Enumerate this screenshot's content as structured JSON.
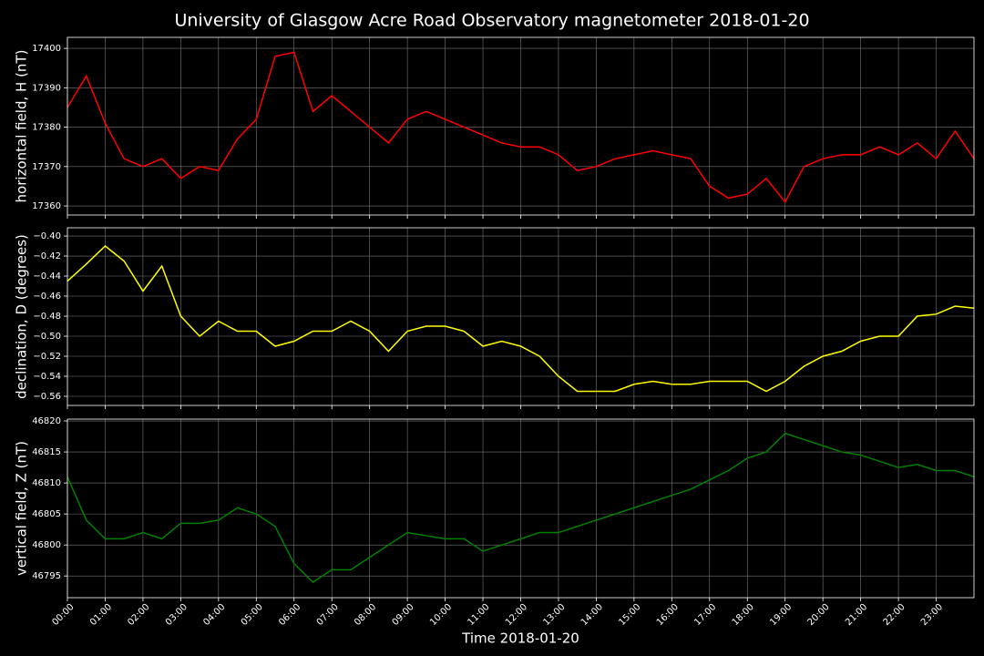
{
  "title": "University of Glasgow Acre Road Observatory magnetometer 2018-01-20",
  "chart_data": [
    {
      "type": "line",
      "ylabel": "horizontal field, H (nT)",
      "color": "#ff0000",
      "grid": true,
      "x": [
        0,
        0.5,
        1,
        1.5,
        2,
        2.5,
        3,
        3.5,
        4,
        4.5,
        5,
        5.5,
        6,
        6.5,
        7,
        7.5,
        8,
        8.5,
        9,
        9.5,
        10,
        10.5,
        11,
        11.5,
        12,
        12.5,
        13,
        13.5,
        14,
        14.5,
        15,
        15.5,
        16,
        16.5,
        17,
        17.5,
        18,
        18.5,
        19,
        19.5,
        20,
        20.5,
        21,
        21.5,
        22,
        22.5,
        23,
        23.5,
        24
      ],
      "values": [
        17385,
        17393,
        17381,
        17372,
        17370,
        17372,
        17367,
        17370,
        17369,
        17377,
        17382,
        17398,
        17399,
        17384,
        17388,
        17384,
        17380,
        17376,
        17382,
        17384,
        17382,
        17380,
        17378,
        17376,
        17375,
        17375,
        17373,
        17369,
        17370,
        17372,
        17373,
        17374,
        17373,
        17372,
        17365,
        17362,
        17363,
        17367,
        17361,
        17370,
        17372,
        17373,
        17373,
        17375,
        17373,
        17376,
        17372,
        17379,
        17372
      ],
      "xlim": [
        0,
        24
      ],
      "xticks": [
        0,
        1,
        2,
        3,
        4,
        5,
        6,
        7,
        8,
        9,
        10,
        11,
        12,
        13,
        14,
        15,
        16,
        17,
        18,
        19,
        20,
        21,
        22,
        23
      ],
      "ylim": [
        17357.7,
        17402.8
      ],
      "yticks": [
        17360,
        17370,
        17380,
        17390,
        17400
      ]
    },
    {
      "type": "line",
      "ylabel": "declination, D (degrees)",
      "color": "#ffff00",
      "grid": true,
      "x": [
        0,
        0.5,
        1,
        1.5,
        2,
        2.5,
        3,
        3.5,
        4,
        4.5,
        5,
        5.5,
        6,
        6.5,
        7,
        7.5,
        8,
        8.5,
        9,
        9.5,
        10,
        10.5,
        11,
        11.5,
        12,
        12.5,
        13,
        13.5,
        14,
        14.5,
        15,
        15.5,
        16,
        16.5,
        17,
        17.5,
        18,
        18.5,
        19,
        19.5,
        20,
        20.5,
        21,
        21.5,
        22,
        22.5,
        23,
        23.5,
        24
      ],
      "values": [
        -0.445,
        -0.428,
        -0.41,
        -0.425,
        -0.455,
        -0.43,
        -0.48,
        -0.5,
        -0.485,
        -0.495,
        -0.495,
        -0.51,
        -0.505,
        -0.495,
        -0.495,
        -0.485,
        -0.495,
        -0.515,
        -0.495,
        -0.49,
        -0.49,
        -0.495,
        -0.51,
        -0.505,
        -0.51,
        -0.52,
        -0.54,
        -0.555,
        -0.555,
        -0.555,
        -0.548,
        -0.545,
        -0.548,
        -0.548,
        -0.545,
        -0.545,
        -0.545,
        -0.555,
        -0.545,
        -0.53,
        -0.52,
        -0.515,
        -0.505,
        -0.5,
        -0.5,
        -0.48,
        -0.478,
        -0.47,
        -0.472
      ],
      "xlim": [
        0,
        24
      ],
      "xticks": [
        0,
        1,
        2,
        3,
        4,
        5,
        6,
        7,
        8,
        9,
        10,
        11,
        12,
        13,
        14,
        15,
        16,
        17,
        18,
        19,
        20,
        21,
        22,
        23
      ],
      "ylim": [
        -0.5691,
        -0.3918
      ],
      "yticks": [
        {
          "value": -0.4,
          "label": "−0.40"
        },
        {
          "value": -0.42,
          "label": "−0.42"
        },
        {
          "value": -0.44,
          "label": "−0.44"
        },
        {
          "value": -0.46,
          "label": "−0.46"
        },
        {
          "value": -0.48,
          "label": "−0.48"
        },
        {
          "value": -0.5,
          "label": "−0.50"
        },
        {
          "value": -0.52,
          "label": "−0.52"
        },
        {
          "value": -0.54,
          "label": "−0.54"
        },
        {
          "value": -0.56,
          "label": "−0.56"
        }
      ]
    },
    {
      "type": "line",
      "ylabel": "vertical field, Z (nT)",
      "xlabel": "Time 2018-01-20",
      "color": "#008000",
      "grid": true,
      "x": [
        0,
        0.5,
        1,
        1.5,
        2,
        2.5,
        3,
        3.5,
        4,
        4.5,
        5,
        5.5,
        6,
        6.5,
        7,
        7.5,
        8,
        8.5,
        9,
        9.5,
        10,
        10.5,
        11,
        11.5,
        12,
        12.5,
        13,
        13.5,
        14,
        14.5,
        15,
        15.5,
        16,
        16.5,
        17,
        17.5,
        18,
        18.5,
        19,
        19.5,
        20,
        20.5,
        21,
        21.5,
        22,
        22.5,
        23,
        23.5,
        24
      ],
      "values": [
        46811,
        46804,
        46801,
        46801,
        46802,
        46801,
        46803.5,
        46803.5,
        46804,
        46806,
        46805,
        46803,
        46797,
        46794,
        46796,
        46796,
        46798,
        46800,
        46802,
        46801.5,
        46801,
        46801,
        46799,
        46800,
        46801,
        46802,
        46802,
        46803,
        46804,
        46805,
        46806,
        46807,
        46808,
        46809,
        46810.5,
        46812,
        46814,
        46815,
        46818,
        46817,
        46816,
        46815,
        46814.5,
        46813.5,
        46812.5,
        46813,
        46812,
        46812,
        46811
      ],
      "xlim": [
        0,
        24
      ],
      "xticks": [
        {
          "value": 0,
          "label": "00:00"
        },
        {
          "value": 1,
          "label": "01:00"
        },
        {
          "value": 2,
          "label": "02:00"
        },
        {
          "value": 3,
          "label": "03:00"
        },
        {
          "value": 4,
          "label": "04:00"
        },
        {
          "value": 5,
          "label": "05:00"
        },
        {
          "value": 6,
          "label": "06:00"
        },
        {
          "value": 7,
          "label": "07:00"
        },
        {
          "value": 8,
          "label": "08:00"
        },
        {
          "value": 9,
          "label": "09:00"
        },
        {
          "value": 10,
          "label": "10:00"
        },
        {
          "value": 11,
          "label": "11:00"
        },
        {
          "value": 12,
          "label": "12:00"
        },
        {
          "value": 13,
          "label": "13:00"
        },
        {
          "value": 14,
          "label": "14:00"
        },
        {
          "value": 15,
          "label": "15:00"
        },
        {
          "value": 16,
          "label": "16:00"
        },
        {
          "value": 17,
          "label": "17:00"
        },
        {
          "value": 18,
          "label": "18:00"
        },
        {
          "value": 19,
          "label": "19:00"
        },
        {
          "value": 20,
          "label": "20:00"
        },
        {
          "value": 21,
          "label": "21:00"
        },
        {
          "value": 22,
          "label": "22:00"
        },
        {
          "value": 23,
          "label": "23:00"
        }
      ],
      "ylim": [
        46791.5,
        46820.3
      ],
      "yticks": [
        46795,
        46800,
        46805,
        46810,
        46815,
        46820
      ]
    }
  ]
}
